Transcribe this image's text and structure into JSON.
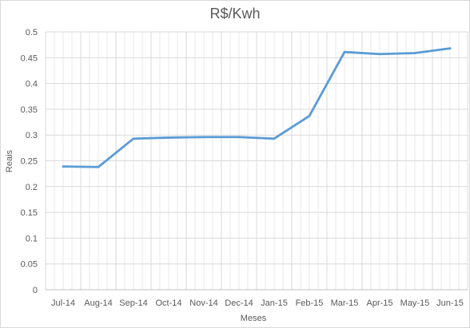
{
  "chart_data": {
    "type": "line",
    "title": "R$/Kwh",
    "xlabel": "Meses",
    "ylabel": "Reais",
    "categories": [
      "Jul-14",
      "Aug-14",
      "Sep-14",
      "Oct-14",
      "Nov-14",
      "Dec-14",
      "Jan-15",
      "Feb-15",
      "Mar-15",
      "Apr-15",
      "May-15",
      "Jun-15"
    ],
    "series": [
      {
        "values": [
          0.239,
          0.238,
          0.293,
          0.295,
          0.296,
          0.296,
          0.293,
          0.337,
          0.461,
          0.457,
          0.459,
          0.468
        ]
      }
    ],
    "ylim": [
      0,
      0.5
    ],
    "yticks": [
      "0",
      "0.05",
      "0.1",
      "0.15",
      "0.2",
      "0.25",
      "0.3",
      "0.35",
      "0.4",
      "0.45",
      "0.5"
    ],
    "grid": true,
    "minor_vertical_grid": true,
    "legend": "none",
    "colors": {
      "line": "#5B9BD5",
      "grid": "#d9d9d9",
      "text": "#595959"
    }
  }
}
